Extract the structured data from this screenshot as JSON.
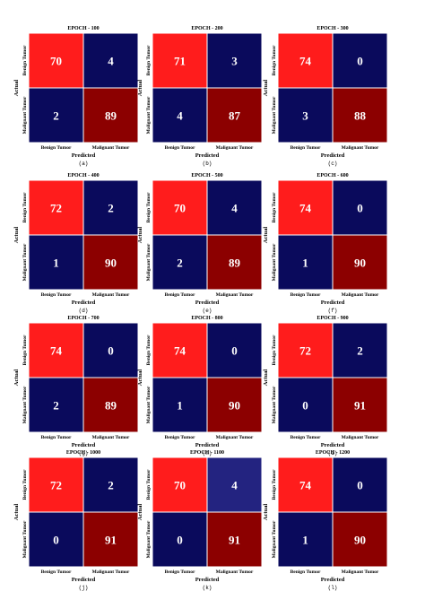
{
  "chart_data": [
    {
      "type": "heatmap",
      "panel": "(a)",
      "title": "EPOCH - 100",
      "xlabel": "Predicted",
      "ylabel": "Actual",
      "x_categories": [
        "Benign Tumor",
        "Malignant Tumor"
      ],
      "y_categories": [
        "Benign Tumor",
        "Malignant Tumor"
      ],
      "matrix": [
        [
          70,
          4
        ],
        [
          2,
          89
        ]
      ]
    },
    {
      "type": "heatmap",
      "panel": "(b)",
      "title": "EPOCH - 200",
      "xlabel": "Predicted",
      "ylabel": "Actual",
      "x_categories": [
        "Benign Tumor",
        "Malignant Tumor"
      ],
      "y_categories": [
        "Benign Tumor",
        "Malignant Tumor"
      ],
      "matrix": [
        [
          71,
          3
        ],
        [
          4,
          87
        ]
      ]
    },
    {
      "type": "heatmap",
      "panel": "(c)",
      "title": "EPOCH - 300",
      "xlabel": "Predicted",
      "ylabel": "Actual",
      "x_categories": [
        "Benign Tumor",
        "Malignant Tumor"
      ],
      "y_categories": [
        "Benign Tumor",
        "Malignant Tumor"
      ],
      "matrix": [
        [
          74,
          0
        ],
        [
          3,
          88
        ]
      ]
    },
    {
      "type": "heatmap",
      "panel": "(d)",
      "title": "EPOCH - 400",
      "xlabel": "Predicted",
      "ylabel": "Actual",
      "x_categories": [
        "Benign Tumor",
        "Malignant Tumor"
      ],
      "y_categories": [
        "Benign Tumor",
        "Malignant Tumor"
      ],
      "matrix": [
        [
          72,
          2
        ],
        [
          1,
          90
        ]
      ]
    },
    {
      "type": "heatmap",
      "panel": "(e)",
      "title": "EPOCH - 500",
      "xlabel": "Predicted",
      "ylabel": "Actual",
      "x_categories": [
        "Benign Tumor",
        "Malignant Tumor"
      ],
      "y_categories": [
        "Benign Tumor",
        "Malignant Tumor"
      ],
      "matrix": [
        [
          70,
          4
        ],
        [
          2,
          89
        ]
      ]
    },
    {
      "type": "heatmap",
      "panel": "(f)",
      "title": "EPOCH - 600",
      "xlabel": "Predicted",
      "ylabel": "Actual",
      "x_categories": [
        "Benign Tumor",
        "Malignant Tumor"
      ],
      "y_categories": [
        "Benign Tumor",
        "Malignant Tumor"
      ],
      "matrix": [
        [
          74,
          0
        ],
        [
          1,
          90
        ]
      ]
    },
    {
      "type": "heatmap",
      "panel": "(g)",
      "title": "EPOCH - 700",
      "xlabel": "Predicted",
      "ylabel": "Actual",
      "x_categories": [
        "Benign Tumor",
        "Malignant Tumor"
      ],
      "y_categories": [
        "Benign Tumor",
        "Malignant Tumor"
      ],
      "matrix": [
        [
          74,
          0
        ],
        [
          2,
          89
        ]
      ]
    },
    {
      "type": "heatmap",
      "panel": "(h)",
      "title": "EPOCH - 800",
      "xlabel": "Predicted",
      "ylabel": "Actual",
      "x_categories": [
        "Benign Tumor",
        "Malignant Tumor"
      ],
      "y_categories": [
        "Benign Tumor",
        "Malignant Tumor"
      ],
      "matrix": [
        [
          74,
          0
        ],
        [
          1,
          90
        ]
      ]
    },
    {
      "type": "heatmap",
      "panel": "(i)",
      "title": "EPOCH - 900",
      "xlabel": "Predicted",
      "ylabel": "Actual",
      "x_categories": [
        "Benign Tumor",
        "Malignant Tumor"
      ],
      "y_categories": [
        "Benign Tumor",
        "Malignant Tumor"
      ],
      "matrix": [
        [
          72,
          2
        ],
        [
          0,
          91
        ]
      ]
    },
    {
      "type": "heatmap",
      "panel": "(j)",
      "title": "EPOCH - 1000",
      "xlabel": "Predicted",
      "ylabel": "Actual",
      "x_categories": [
        "Benign Tumor",
        "Malignant Tumor"
      ],
      "y_categories": [
        "Benign Tumor",
        "Malignant Tumor"
      ],
      "matrix": [
        [
          72,
          2
        ],
        [
          0,
          91
        ]
      ]
    },
    {
      "type": "heatmap",
      "panel": "(k)",
      "title": "EPOCH - 1100",
      "xlabel": "Predicted",
      "ylabel": "Actual",
      "x_categories": [
        "Benign Tumor",
        "Malignant Tumor"
      ],
      "y_categories": [
        "Benign Tumor",
        "Malignant Tumor"
      ],
      "matrix": [
        [
          70,
          4
        ],
        [
          0,
          91
        ]
      ]
    },
    {
      "type": "heatmap",
      "panel": "(l)",
      "title": "EPOCH - 1200",
      "xlabel": "Predicted",
      "ylabel": "Actual",
      "x_categories": [
        "Benign Tumor",
        "Malignant Tumor"
      ],
      "y_categories": [
        "Benign Tumor",
        "Malignant Tumor"
      ],
      "matrix": [
        [
          74,
          0
        ],
        [
          1,
          90
        ]
      ]
    }
  ],
  "colors": {
    "benign_correct": "#ff1c1c",
    "low_count": "#0a0a5c",
    "malignant_correct": "#8c0000",
    "blue_alt": "#232380"
  }
}
